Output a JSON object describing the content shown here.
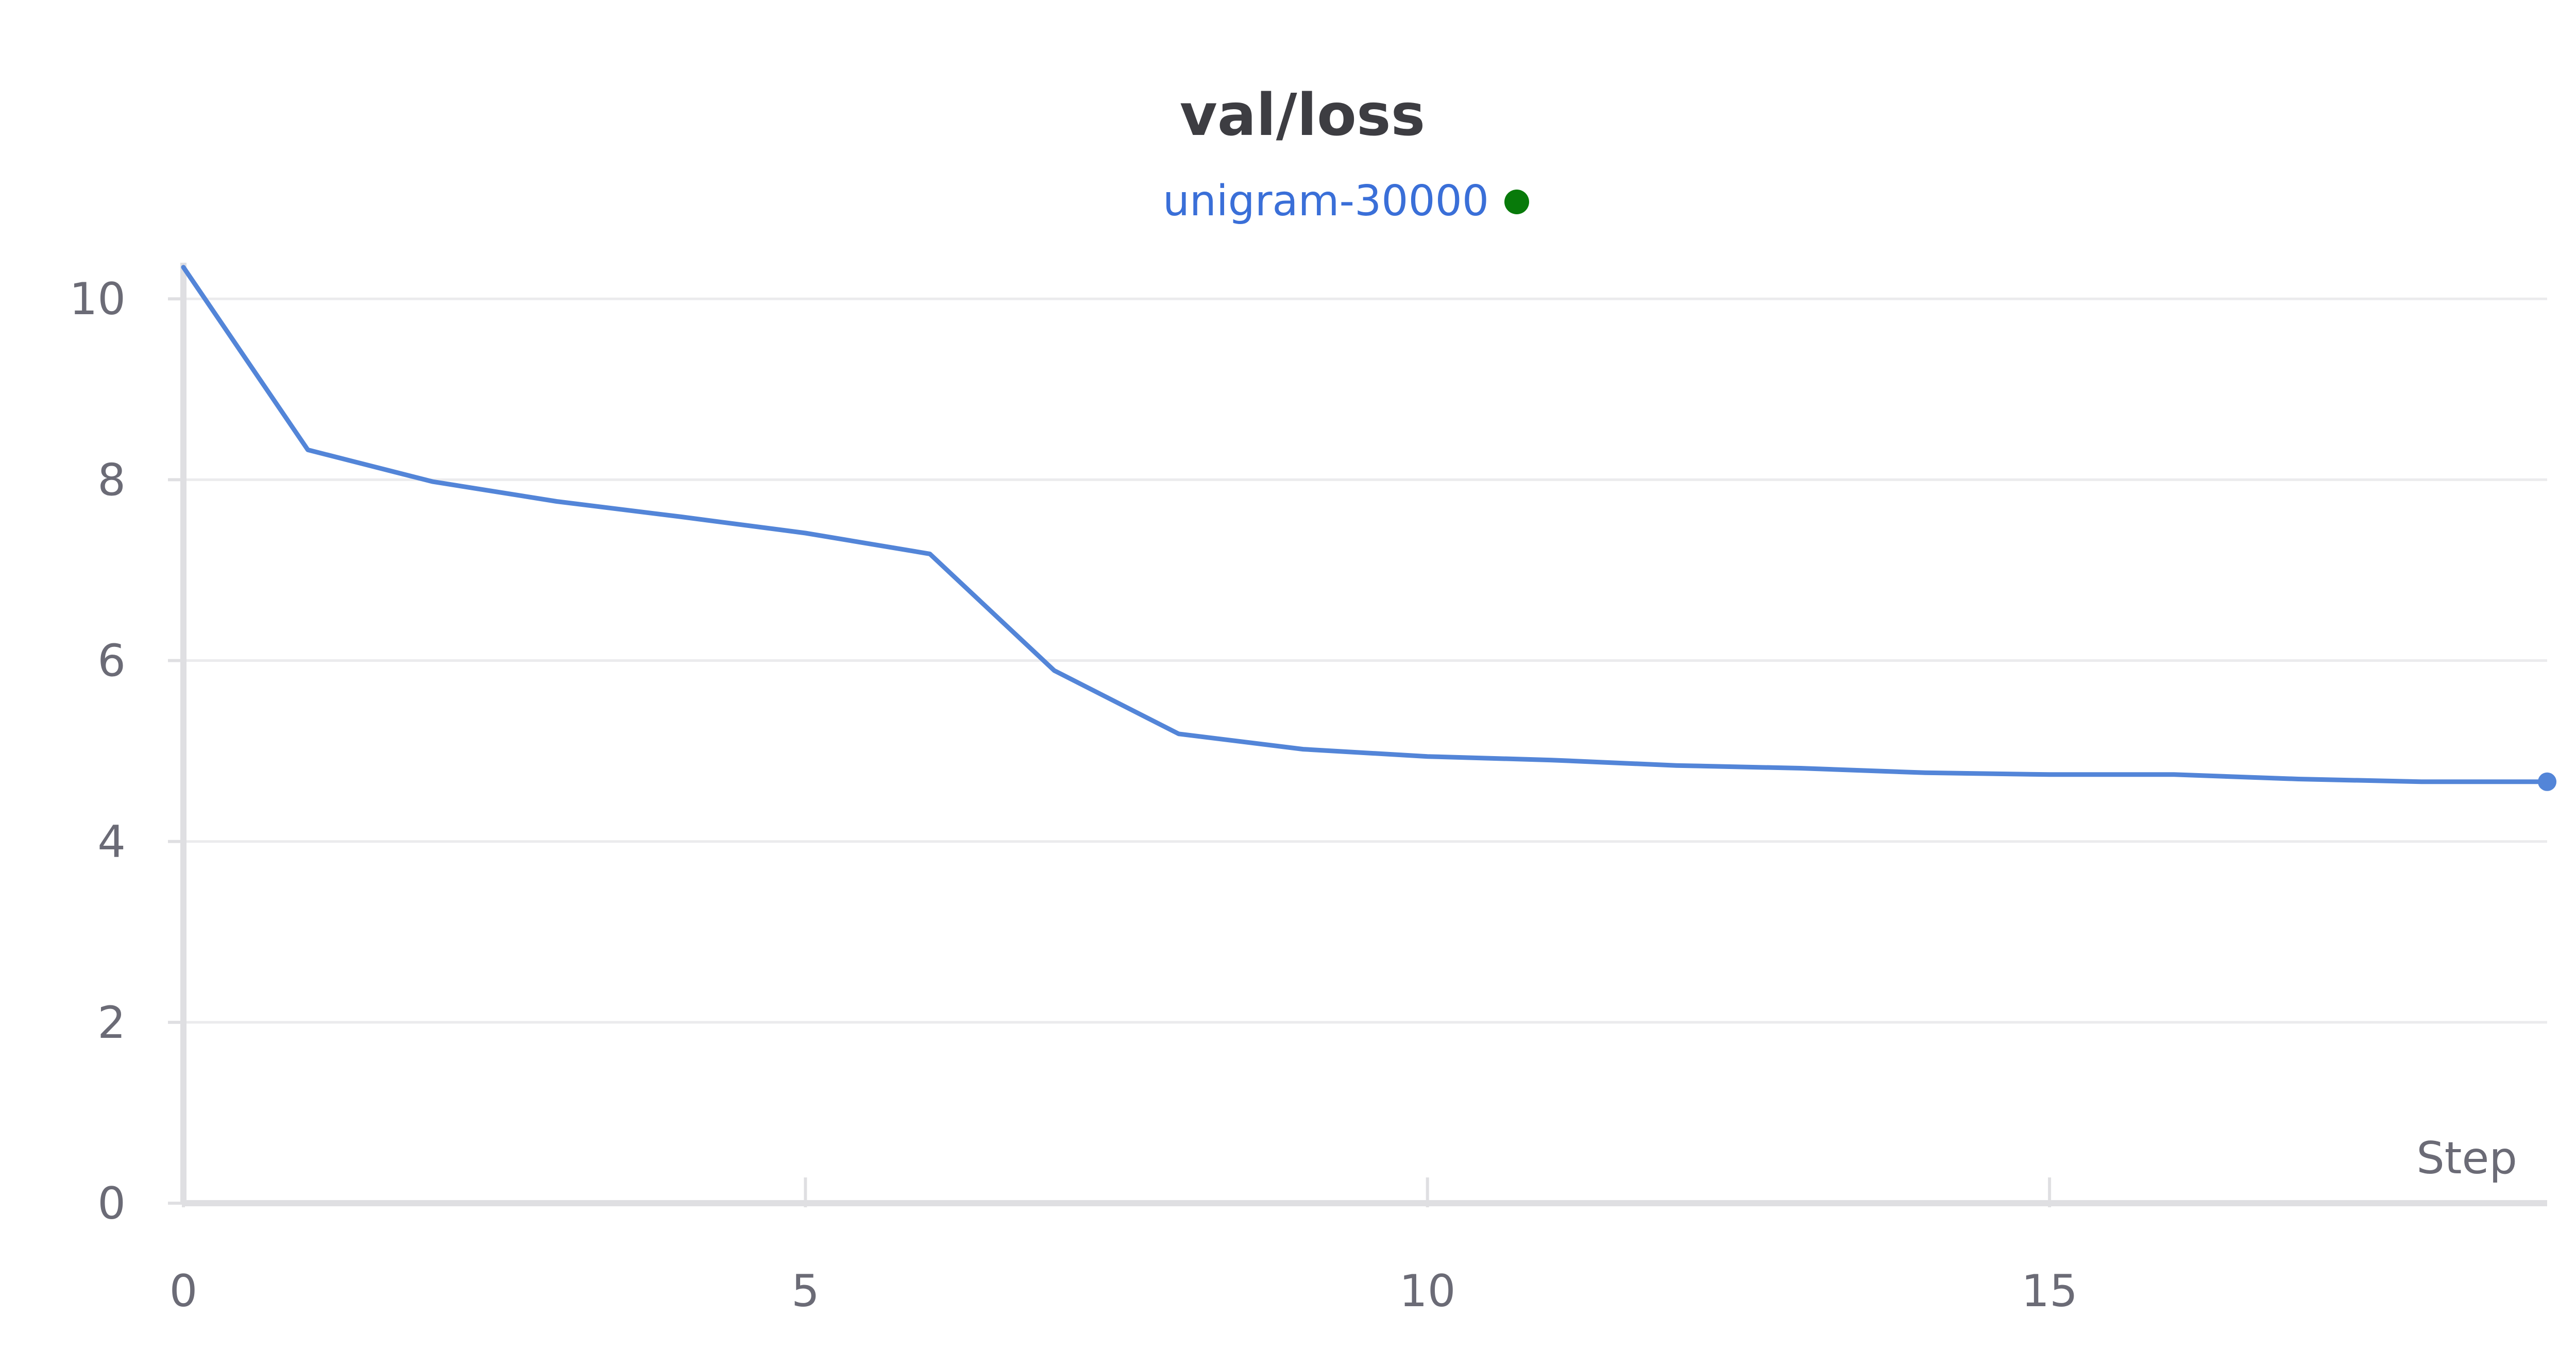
{
  "chart_data": {
    "type": "line",
    "title": "val/loss",
    "xlabel": "Step",
    "ylabel": "",
    "xlim": [
      0,
      19
    ],
    "ylim": [
      0,
      10.4
    ],
    "x_ticks": [
      0,
      5,
      10,
      15
    ],
    "y_ticks": [
      0,
      2,
      4,
      6,
      8,
      10
    ],
    "grid": true,
    "legend_position": "top-center",
    "series": [
      {
        "name": "unigram-30000",
        "color": "#5385d8",
        "legend_marker_color": "#087a0a",
        "x": [
          0,
          1,
          2,
          3,
          4,
          5,
          6,
          7,
          8,
          9,
          10,
          11,
          12,
          13,
          14,
          15,
          16,
          17,
          18,
          19
        ],
        "y": [
          10.35,
          8.33,
          7.98,
          7.76,
          7.59,
          7.41,
          7.18,
          5.89,
          5.19,
          5.02,
          4.94,
          4.9,
          4.84,
          4.81,
          4.76,
          4.74,
          4.74,
          4.69,
          4.66,
          4.66
        ]
      }
    ]
  },
  "colors": {
    "line": "#5385d8",
    "legend_text": "#3a6fd8",
    "legend_dot": "#087a0a",
    "grid": "#ebebed",
    "axis": "#dfdfe2",
    "tick_text": "#6b6b76",
    "title": "#3d3d42"
  }
}
